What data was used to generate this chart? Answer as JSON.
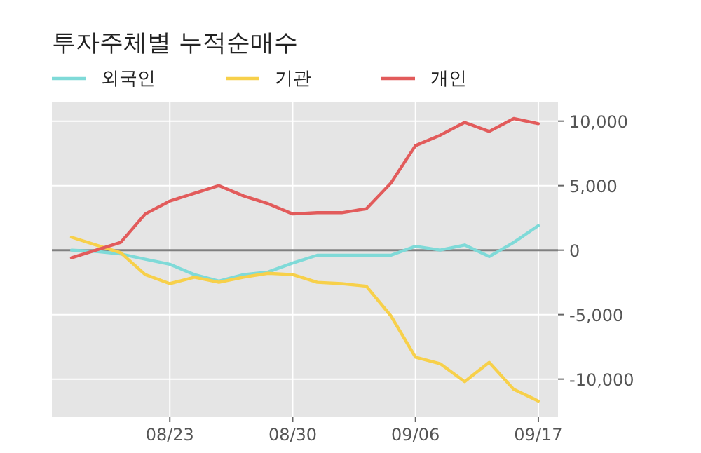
{
  "chart_data": {
    "type": "line",
    "title": "투자주체별 누적순매수",
    "categories": [
      null,
      null,
      null,
      null,
      "08/23",
      null,
      null,
      null,
      null,
      "08/30",
      null,
      null,
      null,
      null,
      "09/06",
      null,
      null,
      null,
      null,
      "09/17"
    ],
    "series": [
      {
        "name": "외국인",
        "color": "#7fdad8",
        "values": [
          0,
          -100,
          -300,
          -700,
          -1100,
          -1900,
          -2400,
          -1900,
          -1700,
          -1000,
          -400,
          -400,
          -400,
          -400,
          300,
          0,
          400,
          -500,
          600,
          1900
        ]
      },
      {
        "name": "기관",
        "color": "#f7d04a",
        "values": [
          1000,
          400,
          -200,
          -1900,
          -2600,
          -2100,
          -2500,
          -2100,
          -1800,
          -1900,
          -2500,
          -2600,
          -2800,
          -5100,
          -8300,
          -8800,
          -10200,
          -8700,
          -10800,
          -11700
        ]
      },
      {
        "name": "개인",
        "color": "#e25b5b",
        "values": [
          -600,
          0,
          600,
          2800,
          3800,
          4400,
          5000,
          4200,
          3600,
          2800,
          2900,
          2900,
          3200,
          5200,
          8100,
          8900,
          9900,
          9200,
          10200,
          9800
        ]
      }
    ],
    "ylim": [
      -12900,
      11450
    ],
    "yticks": [
      {
        "value": -10000,
        "label": "-10,000"
      },
      {
        "value": -5000,
        "label": "-5,000"
      },
      0,
      {
        "value": 5000,
        "label": "5,000"
      },
      {
        "value": 10000,
        "label": "10,000"
      }
    ],
    "ref_lines": [
      {
        "axis": "y",
        "value": 0,
        "color": "#808080"
      }
    ],
    "grid": true,
    "legend": "top",
    "line_style": "solid",
    "marker": "none"
  }
}
